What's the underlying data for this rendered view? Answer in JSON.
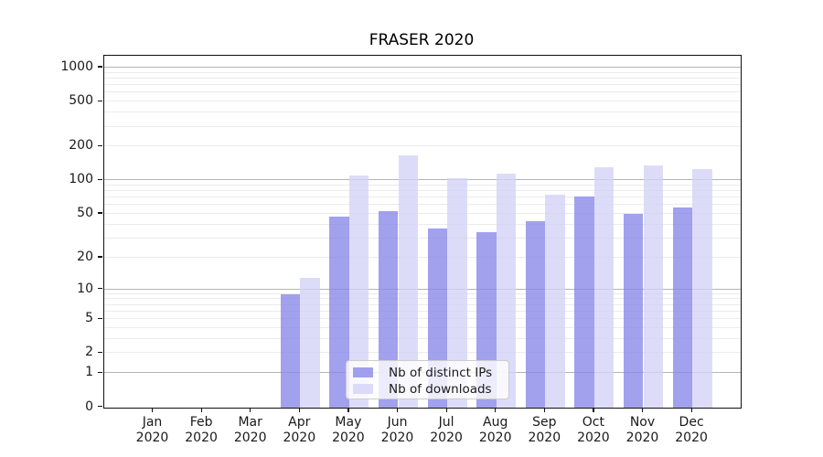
{
  "chart_data": {
    "type": "bar",
    "title": "FRASER 2020",
    "categories": [
      "Jan",
      "Feb",
      "Mar",
      "Apr",
      "May",
      "Jun",
      "Jul",
      "Aug",
      "Sep",
      "Oct",
      "Nov",
      "Dec"
    ],
    "category_year_label": "2020",
    "series": [
      {
        "name": "Nb of distinct IPs",
        "color": "rgba(134,134,233,0.78)",
        "values": [
          0,
          0,
          0,
          9,
          47,
          53,
          37,
          34,
          43,
          72,
          50,
          57
        ]
      },
      {
        "name": "Nb of downloads",
        "color": "rgba(211,211,247,0.80)",
        "values": [
          0,
          0,
          0,
          13,
          110,
          166,
          104,
          115,
          74,
          131,
          135,
          127
        ]
      }
    ],
    "y_scale": "log10(v+1)",
    "y_axis_top_value": 1270,
    "y_ticks": [
      0,
      1,
      2,
      5,
      10,
      20,
      50,
      100,
      200,
      500,
      1000
    ],
    "grid": {
      "major": [
        1,
        10,
        100,
        1000
      ],
      "minor": [
        2,
        3,
        4,
        5,
        6,
        7,
        8,
        9,
        20,
        30,
        40,
        50,
        60,
        70,
        80,
        90,
        200,
        300,
        400,
        500,
        600,
        700,
        800,
        900
      ]
    },
    "legend_position": "lower center",
    "colors": {
      "major_grid": "#b4b4b4",
      "minor_grid": "#ebebeb",
      "spine": "#111111",
      "text": "#1a1a1a",
      "background": "#ffffff"
    }
  }
}
